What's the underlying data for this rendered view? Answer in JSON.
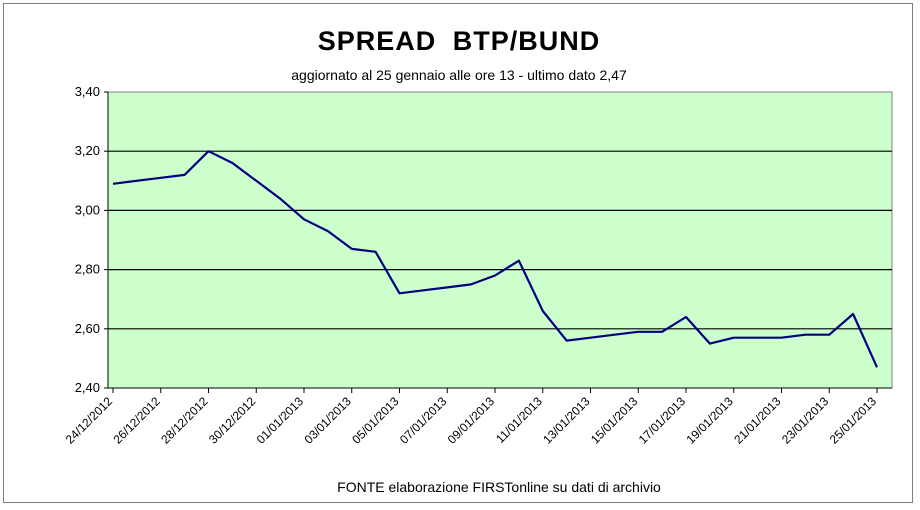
{
  "chart_data": {
    "type": "line",
    "title": "SPREAD  BTP/BUND",
    "subtitle": "aggiornato al 25 gennaio alle ore 13 - ultimo dato 2,47",
    "source": "FONTE elaborazione FIRSTonline su dati di archivio",
    "xlabel": "",
    "ylabel": "",
    "ylim": [
      2.4,
      3.4
    ],
    "ytick_values": [
      2.4,
      2.6,
      2.8,
      3.0,
      3.2,
      3.4
    ],
    "yticks": [
      "2,40",
      "2,60",
      "2,80",
      "3,00",
      "3,20",
      "3,40"
    ],
    "xtick_dates": [
      "24/12/2012",
      "26/12/2012",
      "28/12/2012",
      "30/12/2012",
      "01/01/2013",
      "03/01/2013",
      "05/01/2013",
      "07/01/2013",
      "09/01/2013",
      "11/01/2013",
      "13/01/2013",
      "15/01/2013",
      "17/01/2013",
      "19/01/2013",
      "21/01/2013",
      "23/01/2013",
      "25/01/2013"
    ],
    "xticks": [
      "24/12/2012",
      "26/12/2012",
      "28/12/2012",
      "30/12/2012",
      "01/01/2013",
      "03/01/2013",
      "05/01/2013",
      "07/01/2013",
      "09/01/2013",
      "11/01/2013",
      "13/01/2013",
      "15/01/2013",
      "17/01/2013",
      "19/01/2013",
      "21/01/2013",
      "23/01/2013",
      "25/01/2013"
    ],
    "grid": true,
    "background_color": "#ccffcc",
    "line_color": "#000080",
    "series": [
      {
        "x": [
          "24/12/2012",
          "26/12/2012",
          "27/12/2012",
          "28/12/2012",
          "29/12/2012",
          "30/12/2012",
          "31/12/2012",
          "01/01/2013",
          "02/01/2013",
          "03/01/2013",
          "04/01/2013",
          "05/01/2013",
          "06/01/2013",
          "07/01/2013",
          "08/01/2013",
          "09/01/2013",
          "10/01/2013",
          "11/01/2013",
          "12/01/2013",
          "13/01/2013",
          "14/01/2013",
          "15/01/2013",
          "16/01/2013",
          "17/01/2013",
          "18/01/2013",
          "19/01/2013",
          "20/01/2013",
          "21/01/2013",
          "22/01/2013",
          "23/01/2013",
          "24/01/2013",
          "25/01/2013"
        ],
        "y": [
          3.09,
          3.11,
          3.12,
          3.2,
          3.16,
          3.1,
          3.04,
          2.97,
          2.93,
          2.87,
          2.86,
          2.72,
          2.73,
          2.74,
          2.75,
          2.78,
          2.83,
          2.66,
          2.56,
          2.57,
          2.58,
          2.59,
          2.59,
          2.64,
          2.55,
          2.57,
          2.57,
          2.57,
          2.58,
          2.58,
          2.65,
          2.47
        ]
      }
    ]
  }
}
